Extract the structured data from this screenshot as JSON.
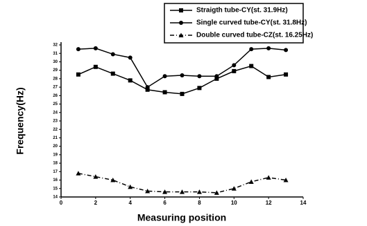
{
  "chart_data": {
    "type": "line",
    "xlabel": "Measuring position",
    "ylabel": "Frequency(Hz)",
    "x": [
      1,
      2,
      3,
      4,
      5,
      6,
      7,
      8,
      9,
      10,
      11,
      12,
      13
    ],
    "series": [
      {
        "name": "Straigth tube-CY(st. 31.9Hz)",
        "color": "#000000",
        "marker": "square",
        "dash": "solid",
        "values": [
          28.5,
          29.4,
          28.6,
          27.8,
          26.7,
          26.4,
          26.2,
          26.9,
          28.0,
          28.9,
          29.5,
          28.2,
          28.5
        ]
      },
      {
        "name": "Single curved tube-CY(st. 31.8Hz)",
        "color": "#000000",
        "marker": "circle",
        "dash": "solid",
        "values": [
          31.5,
          31.6,
          30.9,
          30.5,
          27.0,
          28.3,
          28.4,
          28.3,
          28.3,
          29.6,
          31.5,
          31.6,
          31.4
        ]
      },
      {
        "name": "Double curved tube-CZ(st. 16.25Hz)",
        "color": "#000000",
        "marker": "triangle",
        "dash": "dashdot",
        "values": [
          16.8,
          16.4,
          16.0,
          15.2,
          14.7,
          14.6,
          14.6,
          14.6,
          14.5,
          15.0,
          15.8,
          16.3,
          16.0
        ]
      }
    ],
    "xlim": [
      0,
      14
    ],
    "xticks": [
      0,
      2,
      4,
      6,
      8,
      10,
      12,
      14
    ],
    "ylim": [
      14,
      32
    ],
    "yticks": [
      14,
      15,
      16,
      17,
      18,
      19,
      20,
      21,
      22,
      23,
      24,
      25,
      26,
      27,
      28,
      29,
      30,
      31,
      32
    ],
    "legend": "upper right"
  }
}
